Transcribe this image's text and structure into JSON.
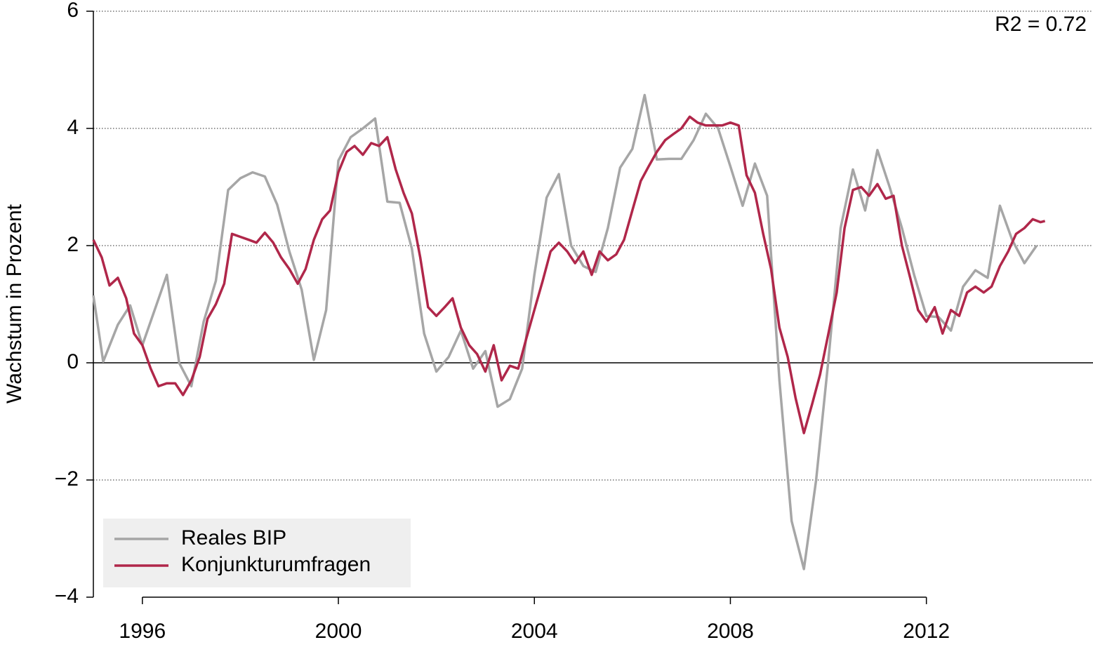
{
  "chart_data": {
    "type": "line",
    "y_label": "Wachstum in Prozent",
    "annotation": "R2 = 0.72",
    "xlim": [
      1995.0,
      2015.4
    ],
    "xticks": [
      1996,
      2000,
      2004,
      2008,
      2012
    ],
    "ylim": [
      -4,
      6
    ],
    "yticks": [
      {
        "value": -4,
        "label": "−4"
      },
      {
        "value": -2,
        "label": "−2"
      },
      0,
      2,
      4,
      6
    ],
    "grid": true,
    "legend": "bottom-left",
    "series": [
      {
        "name": "Reales BIP",
        "color": "#a6a6a6",
        "x": [
          1995.0,
          1995.2,
          1995.5,
          1995.75,
          1996.0,
          1996.25,
          1996.5,
          1996.75,
          1997.0,
          1997.25,
          1997.5,
          1997.75,
          1998.0,
          1998.25,
          1998.5,
          1998.75,
          1999.0,
          1999.25,
          1999.5,
          1999.75,
          2000.0,
          2000.25,
          2000.5,
          2000.75,
          2001.0,
          2001.25,
          2001.5,
          2001.75,
          2002.0,
          2002.25,
          2002.5,
          2002.75,
          2003.0,
          2003.25,
          2003.5,
          2003.75,
          2004.0,
          2004.25,
          2004.5,
          2004.75,
          2005.0,
          2005.25,
          2005.5,
          2005.75,
          2006.0,
          2006.25,
          2006.5,
          2006.75,
          2007.0,
          2007.25,
          2007.5,
          2007.75,
          2008.0,
          2008.25,
          2008.5,
          2008.75,
          2009.0,
          2009.25,
          2009.5,
          2009.75,
          2010.0,
          2010.25,
          2010.5,
          2010.75,
          2011.0,
          2011.25,
          2011.5,
          2011.75,
          2012.0,
          2012.25,
          2012.5,
          2012.75,
          2013.0,
          2013.25,
          2013.5,
          2013.75,
          2014.0,
          2014.25
        ],
        "values": [
          1.15,
          0.02,
          0.65,
          0.98,
          0.3,
          0.9,
          1.5,
          0.0,
          -0.4,
          0.7,
          1.4,
          2.95,
          3.15,
          3.25,
          3.18,
          2.7,
          1.9,
          1.25,
          0.05,
          0.9,
          3.45,
          3.85,
          4.0,
          4.17,
          2.75,
          2.73,
          1.95,
          0.5,
          -0.15,
          0.1,
          0.55,
          -0.1,
          0.2,
          -0.75,
          -0.62,
          -0.1,
          1.5,
          2.82,
          3.22,
          2.0,
          1.65,
          1.55,
          2.3,
          3.33,
          3.65,
          4.57,
          3.47,
          3.48,
          3.48,
          3.8,
          4.25,
          4.0,
          3.35,
          2.68,
          3.4,
          2.85,
          -0.3,
          -2.7,
          -3.52,
          -2.0,
          0.05,
          2.3,
          3.3,
          2.6,
          3.63,
          3.0,
          2.3,
          1.5,
          0.8,
          0.78,
          0.55,
          1.3,
          1.58,
          1.45,
          2.68,
          2.1,
          1.7,
          2.0
        ]
      },
      {
        "name": "Konjunkturumfragen",
        "color": "#b0274a",
        "x": [
          1995.0,
          1995.17,
          1995.33,
          1995.5,
          1995.67,
          1995.83,
          1996.0,
          1996.17,
          1996.33,
          1996.5,
          1996.67,
          1996.83,
          1997.0,
          1997.17,
          1997.33,
          1997.5,
          1997.67,
          1997.83,
          1998.0,
          1998.17,
          1998.33,
          1998.5,
          1998.67,
          1998.83,
          1999.0,
          1999.17,
          1999.33,
          1999.5,
          1999.67,
          1999.83,
          2000.0,
          2000.17,
          2000.33,
          2000.5,
          2000.67,
          2000.83,
          2001.0,
          2001.17,
          2001.33,
          2001.5,
          2001.67,
          2001.83,
          2002.0,
          2002.17,
          2002.33,
          2002.5,
          2002.67,
          2002.83,
          2003.0,
          2003.17,
          2003.33,
          2003.5,
          2003.67,
          2003.83,
          2004.0,
          2004.17,
          2004.33,
          2004.5,
          2004.67,
          2004.83,
          2005.0,
          2005.17,
          2005.33,
          2005.5,
          2005.67,
          2005.83,
          2006.0,
          2006.17,
          2006.33,
          2006.5,
          2006.67,
          2006.83,
          2007.0,
          2007.17,
          2007.33,
          2007.5,
          2007.67,
          2007.83,
          2008.0,
          2008.17,
          2008.33,
          2008.5,
          2008.67,
          2008.83,
          2009.0,
          2009.17,
          2009.33,
          2009.5,
          2009.67,
          2009.83,
          2010.0,
          2010.17,
          2010.33,
          2010.5,
          2010.67,
          2010.83,
          2011.0,
          2011.17,
          2011.33,
          2011.5,
          2011.67,
          2011.83,
          2012.0,
          2012.17,
          2012.33,
          2012.5,
          2012.67,
          2012.83,
          2013.0,
          2013.17,
          2013.33,
          2013.5,
          2013.67,
          2013.83,
          2014.0,
          2014.17,
          2014.33,
          2014.42
        ],
        "values": [
          2.1,
          1.8,
          1.32,
          1.45,
          1.1,
          0.5,
          0.3,
          -0.1,
          -0.4,
          -0.35,
          -0.35,
          -0.55,
          -0.3,
          0.1,
          0.75,
          1.0,
          1.35,
          2.2,
          2.15,
          2.1,
          2.05,
          2.22,
          2.05,
          1.8,
          1.6,
          1.35,
          1.6,
          2.1,
          2.45,
          2.6,
          3.25,
          3.6,
          3.7,
          3.55,
          3.75,
          3.7,
          3.85,
          3.3,
          2.9,
          2.55,
          1.8,
          0.95,
          0.8,
          0.95,
          1.1,
          0.6,
          0.3,
          0.15,
          -0.15,
          0.3,
          -0.3,
          -0.05,
          -0.1,
          0.4,
          0.9,
          1.4,
          1.9,
          2.05,
          1.9,
          1.7,
          1.9,
          1.5,
          1.9,
          1.75,
          1.85,
          2.1,
          2.6,
          3.1,
          3.35,
          3.6,
          3.8,
          3.9,
          4.0,
          4.2,
          4.1,
          4.05,
          4.05,
          4.05,
          4.1,
          4.05,
          3.2,
          2.9,
          2.2,
          1.6,
          0.6,
          0.1,
          -0.6,
          -1.2,
          -0.7,
          -0.2,
          0.5,
          1.2,
          2.3,
          2.95,
          3.0,
          2.85,
          3.05,
          2.8,
          2.85,
          2.0,
          1.45,
          0.9,
          0.7,
          0.95,
          0.5,
          0.9,
          0.8,
          1.2,
          1.3,
          1.2,
          1.3,
          1.65,
          1.9,
          2.2,
          2.3,
          2.45,
          2.4,
          2.42
        ]
      }
    ]
  }
}
